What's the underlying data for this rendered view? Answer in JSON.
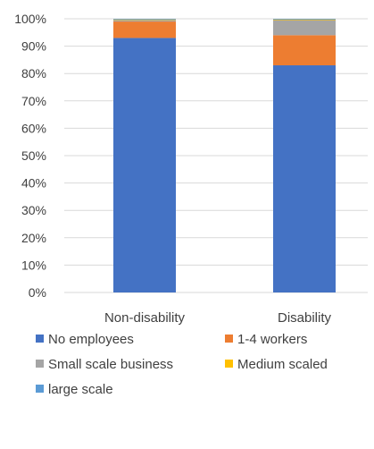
{
  "chart_data": {
    "type": "bar",
    "stacked": true,
    "percent": true,
    "categories": [
      "Non-disability",
      "Disability"
    ],
    "series": [
      {
        "name": "No employees",
        "values": [
          93,
          83
        ],
        "color": "#4472c4"
      },
      {
        "name": "1-4 workers",
        "values": [
          6,
          11
        ],
        "color": "#ed7d31"
      },
      {
        "name": "Small scale business",
        "values": [
          0.6,
          5.5
        ],
        "color": "#a5a5a5"
      },
      {
        "name": "Medium scaled",
        "values": [
          0.2,
          0.3
        ],
        "color": "#ffc000"
      },
      {
        "name": "large scale",
        "values": [
          0.2,
          0.2
        ],
        "color": "#5b9bd5"
      }
    ],
    "yticks": [
      "0%",
      "10%",
      "20%",
      "30%",
      "40%",
      "50%",
      "60%",
      "70%",
      "80%",
      "90%",
      "100%"
    ],
    "ylim": [
      0,
      100
    ],
    "grid": true,
    "legend_position": "bottom"
  }
}
